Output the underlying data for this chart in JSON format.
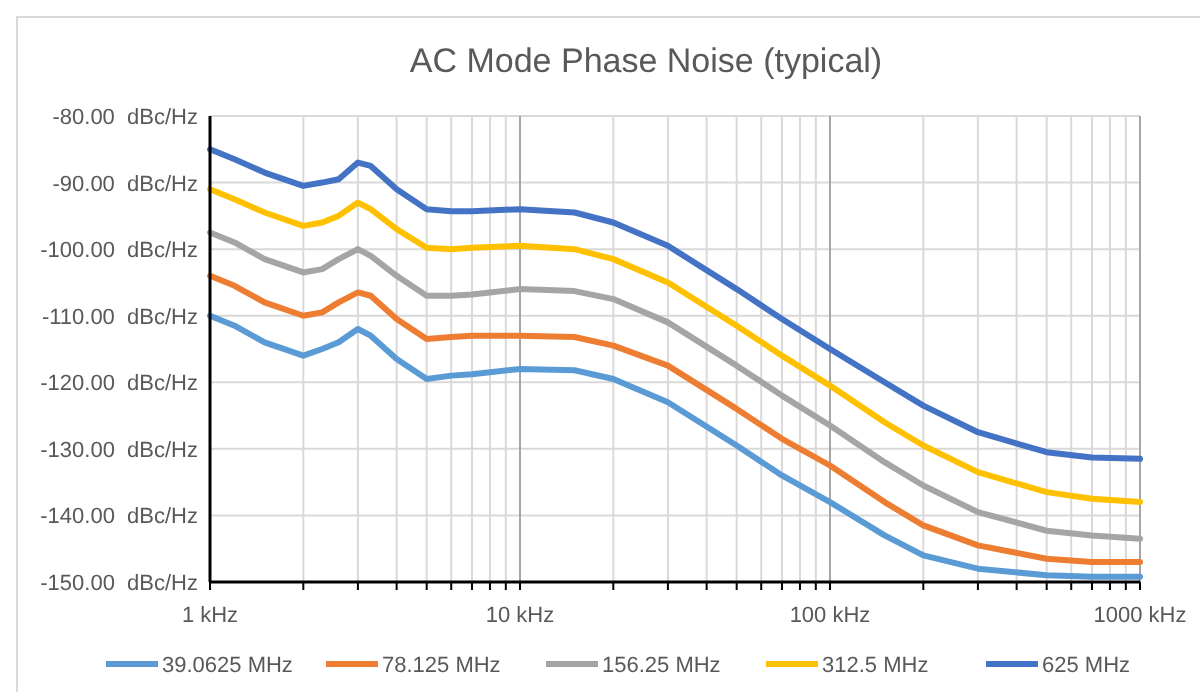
{
  "chart_data": {
    "type": "line",
    "title": "AC Mode Phase Noise (typical)",
    "log": "x",
    "grid": true,
    "legend": "bottom",
    "line_style": "solid",
    "marker": "none",
    "x": [
      1,
      1.2,
      1.5,
      2,
      2.3,
      2.6,
      3,
      3.3,
      4,
      5,
      6,
      7,
      10,
      15,
      20,
      30,
      50,
      70,
      100,
      150,
      200,
      300,
      500,
      700,
      1000
    ],
    "xlim": [
      1,
      1000
    ],
    "xticks": [
      {
        "value": 1,
        "label": "1 kHz"
      },
      {
        "value": 2,
        "label": null
      },
      {
        "value": 3,
        "label": null
      },
      {
        "value": 4,
        "label": null
      },
      {
        "value": 5,
        "label": null
      },
      {
        "value": 6,
        "label": null
      },
      {
        "value": 7,
        "label": null
      },
      {
        "value": 8,
        "label": null
      },
      {
        "value": 9,
        "label": null
      },
      {
        "value": 10,
        "label": "10 kHz"
      },
      {
        "value": 20,
        "label": null
      },
      {
        "value": 30,
        "label": null
      },
      {
        "value": 40,
        "label": null
      },
      {
        "value": 50,
        "label": null
      },
      {
        "value": 60,
        "label": null
      },
      {
        "value": 70,
        "label": null
      },
      {
        "value": 80,
        "label": null
      },
      {
        "value": 90,
        "label": null
      },
      {
        "value": 100,
        "label": "100 kHz"
      },
      {
        "value": 200,
        "label": null
      },
      {
        "value": 300,
        "label": null
      },
      {
        "value": 400,
        "label": null
      },
      {
        "value": 500,
        "label": null
      },
      {
        "value": 600,
        "label": null
      },
      {
        "value": 700,
        "label": null
      },
      {
        "value": 800,
        "label": null
      },
      {
        "value": 900,
        "label": null
      },
      {
        "value": 1000,
        "label": "1000 kHz"
      }
    ],
    "ylim": [
      -150,
      -80
    ],
    "yticks": [
      {
        "value": -150,
        "label": "-150.00  dBc/Hz"
      },
      {
        "value": -140,
        "label": "-140.00  dBc/Hz"
      },
      {
        "value": -130,
        "label": "-130.00  dBc/Hz"
      },
      {
        "value": -120,
        "label": "-120.00  dBc/Hz"
      },
      {
        "value": -110,
        "label": "-110.00  dBc/Hz"
      },
      {
        "value": -100,
        "label": "-100.00  dBc/Hz"
      },
      {
        "value": -90,
        "label": "-90.00  dBc/Hz"
      },
      {
        "value": -80,
        "label": "-80.00  dBc/Hz"
      }
    ],
    "series": [
      {
        "name": "39.0625 MHz",
        "color": "#5b9bd5",
        "values": [
          -110,
          -111.5,
          -114,
          -116,
          -115,
          -114,
          -112,
          -113,
          -116.5,
          -119.5,
          -119,
          -118.8,
          -118,
          -118.2,
          -119.5,
          -123,
          -129.5,
          -134,
          -138,
          -143,
          -146,
          -148,
          -149,
          -149.2,
          -149.2
        ]
      },
      {
        "name": "78.125 MHz",
        "color": "#ed7d31",
        "values": [
          -104,
          -105.5,
          -108,
          -110,
          -109.5,
          -108,
          -106.5,
          -107,
          -110.5,
          -113.5,
          -113.2,
          -113,
          -113,
          -113.2,
          -114.5,
          -117.5,
          -124,
          -128.5,
          -132.5,
          -138,
          -141.5,
          -144.5,
          -146.5,
          -147,
          -147
        ]
      },
      {
        "name": "156.25 MHz",
        "color": "#a5a5a5",
        "values": [
          -97.5,
          -99,
          -101.5,
          -103.5,
          -103,
          -101.5,
          -100,
          -101,
          -104,
          -107,
          -107,
          -106.8,
          -106,
          -106.3,
          -107.5,
          -111,
          -117.5,
          -122,
          -126.5,
          -132,
          -135.5,
          -139.5,
          -142.3,
          -143,
          -143.5
        ]
      },
      {
        "name": "312.5 MHz",
        "color": "#ffc000",
        "values": [
          -91,
          -92.5,
          -94.5,
          -96.5,
          -96,
          -95,
          -93,
          -94,
          -97,
          -99.8,
          -100,
          -99.8,
          -99.5,
          -100,
          -101.5,
          -105,
          -111.5,
          -116,
          -120.5,
          -126,
          -129.5,
          -133.5,
          -136.5,
          -137.5,
          -138
        ]
      },
      {
        "name": "625 MHz",
        "color": "#4472c4",
        "values": [
          -85,
          -86.5,
          -88.5,
          -90.5,
          -90,
          -89.5,
          -87,
          -87.5,
          -91,
          -94,
          -94.3,
          -94.3,
          -94,
          -94.5,
          -96,
          -99.5,
          -106,
          -110.5,
          -115,
          -120,
          -123.5,
          -127.5,
          -130.5,
          -131.3,
          -131.5
        ]
      }
    ]
  }
}
